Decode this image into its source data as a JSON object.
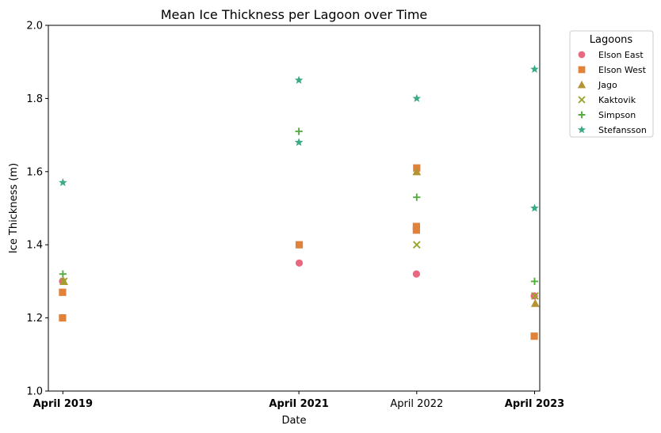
{
  "chart_data": {
    "type": "scatter",
    "title": "Mean Ice Thickness per Lagoon over Time",
    "xlabel": "Date",
    "ylabel": "Ice Thickness (m)",
    "ylim": [
      1.0,
      2.0
    ],
    "yticks": [
      "1.0",
      "1.2",
      "1.4",
      "1.6",
      "1.8",
      "2.0"
    ],
    "xlim": [
      "2019-03-01",
      "2023-05-01"
    ],
    "xticks": [
      {
        "date": "2019-04-15",
        "label": "April 2019",
        "bold": true
      },
      {
        "date": "2021-04-15",
        "label": "April 2021",
        "bold": true
      },
      {
        "date": "2022-04-15",
        "label": "April 2022",
        "bold": false
      },
      {
        "date": "2023-04-15",
        "label": "April 2023",
        "bold": true
      }
    ],
    "grid": false,
    "legend": {
      "title": "Lagoons",
      "placement": "outside-top-right"
    },
    "series": [
      {
        "name": "Elson East",
        "marker": "circle",
        "color": "#e8697f",
        "points": [
          {
            "x": "2019-04-14",
            "y": 1.3
          },
          {
            "x": "2021-04-16",
            "y": 1.35
          },
          {
            "x": "2022-04-14",
            "y": 1.32
          },
          {
            "x": "2023-04-14",
            "y": 1.26
          }
        ]
      },
      {
        "name": "Elson West",
        "marker": "square",
        "color": "#e0823a",
        "points": [
          {
            "x": "2019-04-14",
            "y": 1.27
          },
          {
            "x": "2019-04-14",
            "y": 1.2
          },
          {
            "x": "2021-04-16",
            "y": 1.4
          },
          {
            "x": "2022-04-15",
            "y": 1.61
          },
          {
            "x": "2022-04-14",
            "y": 1.45
          },
          {
            "x": "2022-04-14",
            "y": 1.44
          },
          {
            "x": "2023-04-14",
            "y": 1.15
          }
        ]
      },
      {
        "name": "Jago",
        "marker": "triangle",
        "color": "#b59434",
        "points": [
          {
            "x": "2019-04-18",
            "y": 1.3
          },
          {
            "x": "2022-04-15",
            "y": 1.6
          },
          {
            "x": "2023-04-17",
            "y": 1.24
          }
        ]
      },
      {
        "name": "Kaktovik",
        "marker": "x",
        "color": "#9ba32c",
        "points": [
          {
            "x": "2019-04-18",
            "y": 1.3
          },
          {
            "x": "2022-04-15",
            "y": 1.4
          },
          {
            "x": "2023-04-16",
            "y": 1.26
          }
        ]
      },
      {
        "name": "Simpson",
        "marker": "plus",
        "color": "#53ad3c",
        "points": [
          {
            "x": "2019-04-15",
            "y": 1.32
          },
          {
            "x": "2021-04-15",
            "y": 1.71
          },
          {
            "x": "2022-04-15",
            "y": 1.53
          },
          {
            "x": "2023-04-15",
            "y": 1.3
          }
        ]
      },
      {
        "name": "Stefansson",
        "marker": "star",
        "color": "#3aab83",
        "points": [
          {
            "x": "2019-04-15",
            "y": 1.57
          },
          {
            "x": "2021-04-15",
            "y": 1.85
          },
          {
            "x": "2021-04-15",
            "y": 1.68
          },
          {
            "x": "2022-04-15",
            "y": 1.8
          },
          {
            "x": "2023-04-15",
            "y": 1.88
          },
          {
            "x": "2023-04-15",
            "y": 1.5
          }
        ]
      }
    ]
  }
}
